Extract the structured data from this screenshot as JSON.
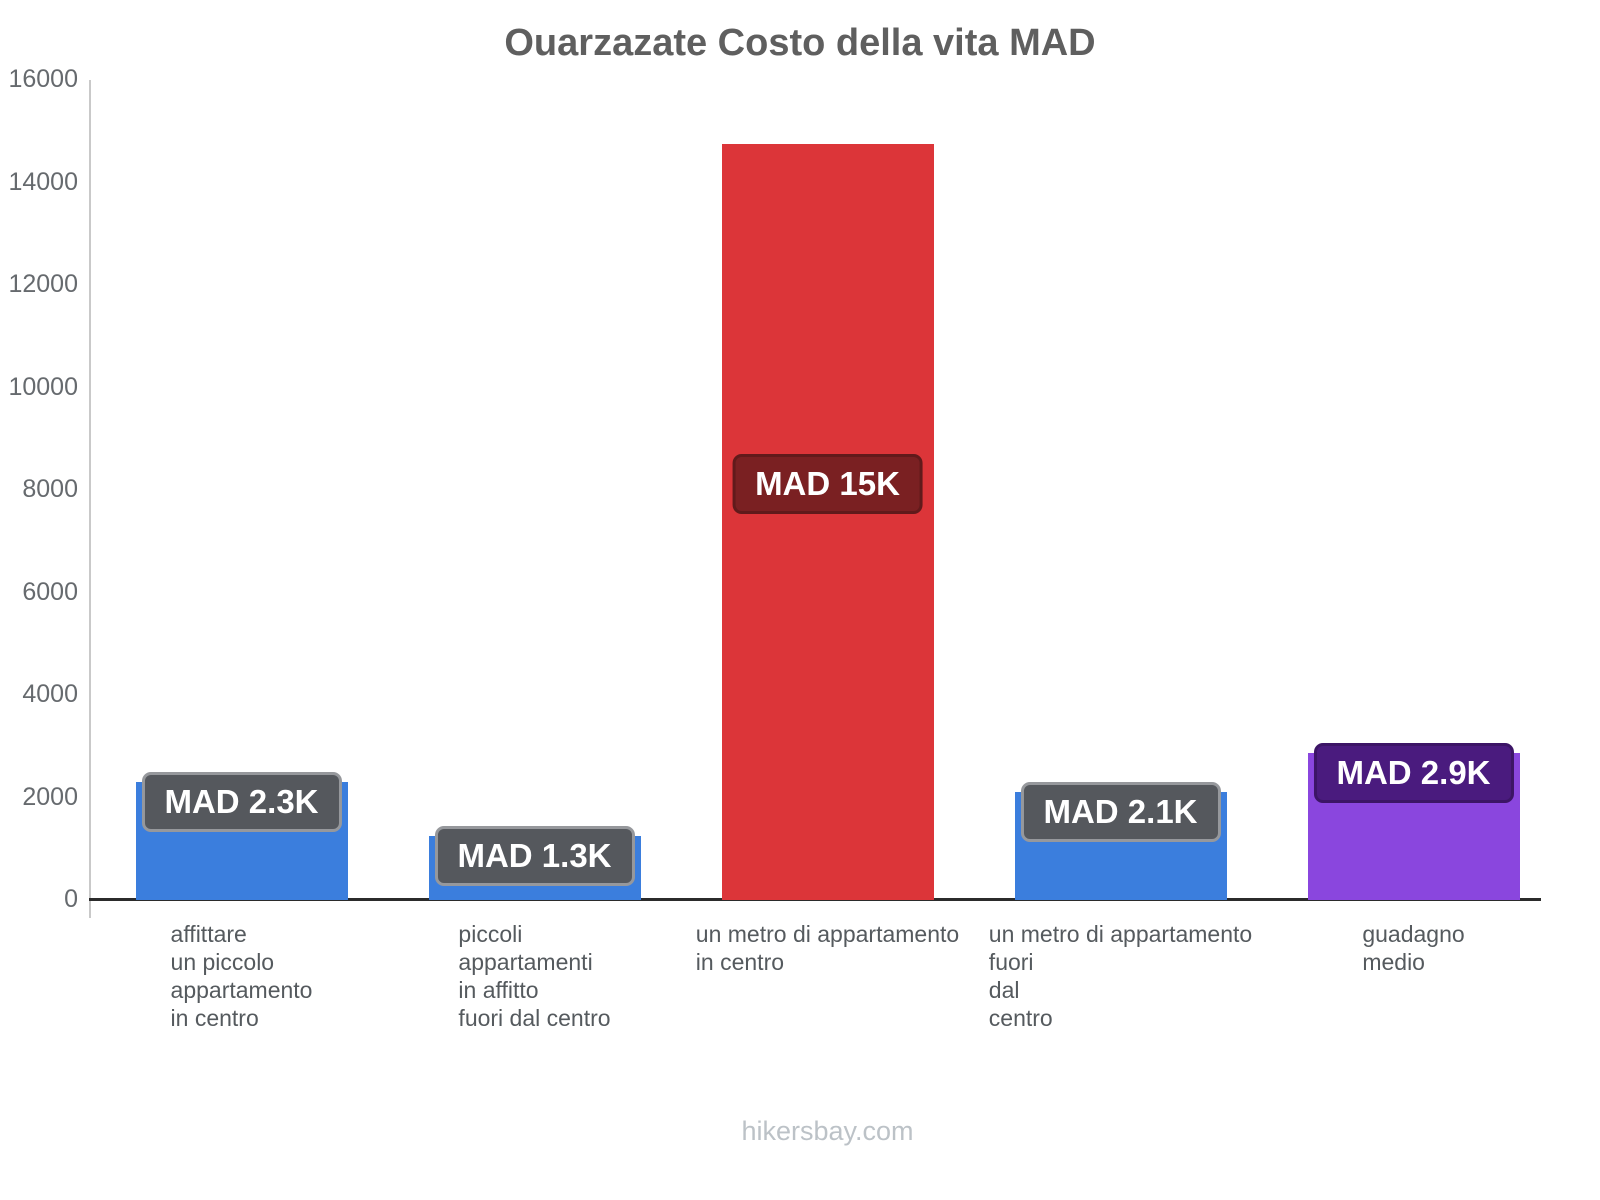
{
  "title": "Ouarzazate Costo della vita MAD",
  "footer": "hikersbay.com",
  "chart_data": {
    "type": "bar",
    "title": "Ouarzazate Costo della vita MAD",
    "xlabel": "",
    "ylabel": "",
    "ylim": [
      0,
      16000
    ],
    "yticks": [
      0,
      2000,
      4000,
      6000,
      8000,
      10000,
      12000,
      14000,
      16000
    ],
    "grid": false,
    "legend": false,
    "categories": [
      "affittare\nun piccolo\nappartamento\nin centro",
      "piccoli\nappartamenti\nin affitto\nfuori dal centro",
      "un metro di appartamento\nin centro",
      "un metro di appartamento\nfuori\ndal\ncentro",
      "guadagno\nmedio"
    ],
    "values": [
      2300,
      1250,
      14750,
      2100,
      2870
    ],
    "data_labels": [
      "MAD 2.3K",
      "MAD 1.3K",
      "MAD 15K",
      "MAD 2.1K",
      "MAD 2.9K"
    ],
    "bar_colors": [
      "#3b7edd",
      "#3b7edd",
      "#dc3539",
      "#3b7edd",
      "#8a46de"
    ],
    "badge_fill_colors": [
      "#55585d",
      "#55585d",
      "#7a2022",
      "#55585d",
      "#4a1b7e"
    ],
    "badge_border_colors": [
      "#96989c",
      "#96989c",
      "#611a1b",
      "#96989c",
      "#3c1566"
    ]
  }
}
